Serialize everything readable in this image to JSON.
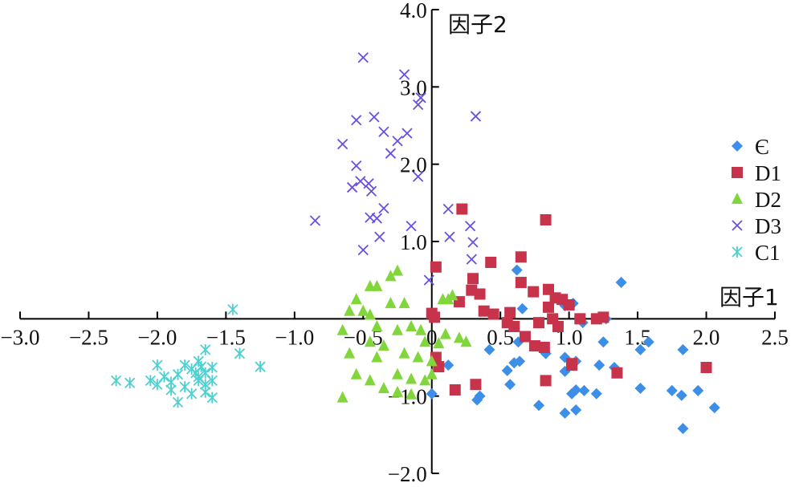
{
  "chart_data": {
    "type": "scatter",
    "xlabel": "因子1",
    "ylabel": "因子2",
    "xlim": [
      -3.0,
      2.5
    ],
    "ylim": [
      -2.0,
      4.0
    ],
    "x_ticks": [
      "−3.0",
      "−2.5",
      "−2.0",
      "−1.5",
      "−1.0",
      "−0.5",
      "0",
      "0.5",
      "1.0",
      "1.5",
      "2.0",
      "2.5"
    ],
    "x_tick_values": [
      -3.0,
      -2.5,
      -2.0,
      -1.5,
      -1.0,
      -0.5,
      0,
      0.5,
      1.0,
      1.5,
      2.0,
      2.5
    ],
    "y_ticks": [
      "4.0",
      "3.0",
      "2.0",
      "1.0",
      "−1.0",
      "−2.0"
    ],
    "y_tick_values": [
      4.0,
      3.0,
      2.0,
      1.0,
      -1.0,
      -2.0
    ],
    "grid": false,
    "legend_position": "right",
    "series": [
      {
        "name": "Є",
        "marker": "diamond",
        "color": "#3d8ee6",
        "points": [
          [
            0.62,
            0.63
          ],
          [
            1.38,
            0.47
          ],
          [
            0.66,
            0.13
          ],
          [
            1.03,
            0.2
          ],
          [
            1.1,
            -0.05
          ],
          [
            0.97,
            0.17
          ],
          [
            1.27,
            0.0
          ],
          [
            0.63,
            -0.3
          ],
          [
            0.6,
            -0.57
          ],
          [
            0.64,
            -0.55
          ],
          [
            0.55,
            -0.67
          ],
          [
            0.42,
            -0.4
          ],
          [
            0.83,
            -0.45
          ],
          [
            0.97,
            -0.5
          ],
          [
            1.05,
            -0.55
          ],
          [
            0.97,
            -0.68
          ],
          [
            1.25,
            -0.3
          ],
          [
            1.33,
            -0.63
          ],
          [
            1.22,
            -0.6
          ],
          [
            1.52,
            -0.4
          ],
          [
            1.58,
            -0.3
          ],
          [
            1.83,
            -0.4
          ],
          [
            1.05,
            -0.92
          ],
          [
            1.02,
            -0.97
          ],
          [
            1.11,
            -0.93
          ],
          [
            1.2,
            -0.97
          ],
          [
            1.52,
            -0.9
          ],
          [
            1.75,
            -0.93
          ],
          [
            1.82,
            -0.99
          ],
          [
            1.94,
            -0.93
          ],
          [
            0.33,
            -1.05
          ],
          [
            0.35,
            -1.0
          ],
          [
            0.57,
            -0.85
          ],
          [
            0.12,
            -0.6
          ],
          [
            0.0,
            -0.97
          ],
          [
            0.78,
            -1.12
          ],
          [
            0.97,
            -1.22
          ],
          [
            1.05,
            -1.18
          ],
          [
            2.06,
            -1.15
          ],
          [
            1.83,
            -1.42
          ]
        ]
      },
      {
        "name": "D1",
        "marker": "square",
        "color": "#c8334c",
        "points": [
          [
            0.22,
            1.42
          ],
          [
            0.83,
            1.28
          ],
          [
            0.3,
            0.52
          ],
          [
            0.03,
            0.67
          ],
          [
            0.43,
            0.73
          ],
          [
            0.65,
            0.8
          ],
          [
            0.29,
            0.37
          ],
          [
            0.35,
            0.32
          ],
          [
            0.65,
            0.47
          ],
          [
            0.74,
            0.35
          ],
          [
            0.85,
            0.38
          ],
          [
            0.9,
            0.27
          ],
          [
            0.2,
            0.22
          ],
          [
            0.38,
            0.1
          ],
          [
            0.45,
            0.06
          ],
          [
            0.57,
            0.08
          ],
          [
            0.85,
            0.15
          ],
          [
            0.95,
            0.25
          ],
          [
            1.0,
            0.18
          ],
          [
            1.08,
            0.0
          ],
          [
            1.2,
            0.0
          ],
          [
            1.25,
            0.02
          ],
          [
            0.02,
            0.02
          ],
          [
            0.0,
            0.07
          ],
          [
            0.55,
            -0.05
          ],
          [
            0.6,
            -0.1
          ],
          [
            0.78,
            -0.05
          ],
          [
            0.88,
            0.0
          ],
          [
            0.92,
            -0.1
          ],
          [
            0.75,
            -0.35
          ],
          [
            0.82,
            -0.37
          ],
          [
            0.68,
            -0.23
          ],
          [
            0.03,
            -0.5
          ],
          [
            0.05,
            -0.62
          ],
          [
            1.02,
            -0.6
          ],
          [
            1.35,
            -0.7
          ],
          [
            1.02,
            -0.58
          ],
          [
            2.0,
            -0.63
          ],
          [
            0.83,
            -0.8
          ],
          [
            0.32,
            -0.85
          ],
          [
            0.17,
            -0.92
          ]
        ]
      },
      {
        "name": "D2",
        "marker": "triangle",
        "color": "#80d63a",
        "points": [
          [
            -0.3,
            0.55
          ],
          [
            -0.25,
            0.62
          ],
          [
            -0.45,
            0.42
          ],
          [
            -0.4,
            0.42
          ],
          [
            -0.55,
            0.25
          ],
          [
            -0.5,
            0.1
          ],
          [
            -0.6,
            0.1
          ],
          [
            -0.45,
            0.05
          ],
          [
            -0.3,
            0.2
          ],
          [
            -0.2,
            0.2
          ],
          [
            0.08,
            0.25
          ],
          [
            0.12,
            0.25
          ],
          [
            0.15,
            0.3
          ],
          [
            -0.4,
            -0.1
          ],
          [
            -0.65,
            -0.15
          ],
          [
            -0.45,
            -0.3
          ],
          [
            -0.35,
            -0.35
          ],
          [
            -0.25,
            -0.15
          ],
          [
            -0.15,
            -0.1
          ],
          [
            -0.08,
            -0.15
          ],
          [
            0.1,
            -0.2
          ],
          [
            0.2,
            -0.25
          ],
          [
            0.25,
            -0.3
          ],
          [
            -0.05,
            -0.3
          ],
          [
            0.05,
            -0.32
          ],
          [
            -0.6,
            -0.45
          ],
          [
            -0.4,
            -0.5
          ],
          [
            -0.2,
            -0.45
          ],
          [
            -0.1,
            -0.5
          ],
          [
            0.0,
            -0.55
          ],
          [
            -0.55,
            -0.72
          ],
          [
            -0.45,
            -0.8
          ],
          [
            -0.25,
            -0.72
          ],
          [
            -0.15,
            -0.78
          ],
          [
            -0.05,
            -0.8
          ],
          [
            0.0,
            -0.72
          ],
          [
            -0.35,
            -0.9
          ],
          [
            -0.25,
            -0.95
          ],
          [
            -0.15,
            -0.98
          ],
          [
            -0.65,
            -1.02
          ]
        ]
      },
      {
        "name": "D3",
        "marker": "x",
        "color": "#6a4fe0",
        "points": [
          [
            -0.5,
            3.38
          ],
          [
            -0.2,
            3.16
          ],
          [
            -0.08,
            2.86
          ],
          [
            -0.1,
            2.77
          ],
          [
            0.32,
            2.62
          ],
          [
            -0.55,
            2.57
          ],
          [
            -0.42,
            2.61
          ],
          [
            -0.35,
            2.42
          ],
          [
            -0.65,
            2.26
          ],
          [
            -0.18,
            2.4
          ],
          [
            -0.25,
            2.3
          ],
          [
            -0.3,
            2.14
          ],
          [
            -0.55,
            1.98
          ],
          [
            -0.52,
            1.78
          ],
          [
            -0.46,
            1.75
          ],
          [
            -0.44,
            1.65
          ],
          [
            -0.58,
            1.7
          ],
          [
            -0.1,
            1.84
          ],
          [
            -0.85,
            1.27
          ],
          [
            -0.45,
            1.31
          ],
          [
            -0.4,
            1.3
          ],
          [
            -0.35,
            1.43
          ],
          [
            -0.15,
            1.2
          ],
          [
            0.12,
            1.42
          ],
          [
            0.28,
            1.2
          ],
          [
            0.13,
            1.06
          ],
          [
            0.3,
            0.99
          ],
          [
            -0.5,
            0.89
          ],
          [
            -0.38,
            1.06
          ],
          [
            0.29,
            0.77
          ],
          [
            -0.02,
            0.5
          ]
        ]
      },
      {
        "name": "C1",
        "marker": "star",
        "color": "#4fd0d0",
        "points": [
          [
            -1.45,
            0.12
          ],
          [
            -1.65,
            -0.4
          ],
          [
            -1.4,
            -0.45
          ],
          [
            -1.25,
            -0.62
          ],
          [
            -2.3,
            -0.8
          ],
          [
            -2.2,
            -0.83
          ],
          [
            -2.0,
            -0.6
          ],
          [
            -1.8,
            -0.6
          ],
          [
            -1.7,
            -0.55
          ],
          [
            -1.68,
            -0.62
          ],
          [
            -1.75,
            -0.65
          ],
          [
            -1.6,
            -0.63
          ],
          [
            -1.65,
            -0.7
          ],
          [
            -1.7,
            -0.75
          ],
          [
            -1.6,
            -0.8
          ],
          [
            -1.85,
            -0.72
          ],
          [
            -1.95,
            -0.75
          ],
          [
            -2.05,
            -0.8
          ],
          [
            -1.9,
            -0.82
          ],
          [
            -1.8,
            -0.88
          ],
          [
            -1.9,
            -0.92
          ],
          [
            -2.0,
            -0.85
          ],
          [
            -1.75,
            -0.97
          ],
          [
            -1.65,
            -0.95
          ],
          [
            -1.6,
            -1.02
          ],
          [
            -1.85,
            -1.08
          ],
          [
            -1.7,
            -0.8
          ],
          [
            -1.65,
            -0.85
          ],
          [
            -1.72,
            -0.7
          ]
        ]
      }
    ]
  }
}
